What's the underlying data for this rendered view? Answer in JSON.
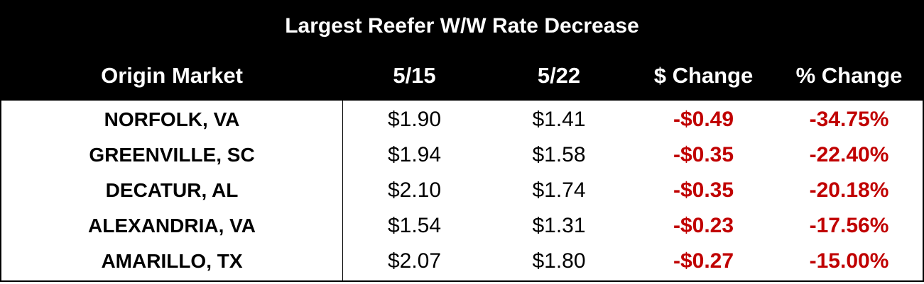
{
  "table": {
    "title": "Largest Reefer W/W Rate Decrease",
    "header": [
      "Origin Market",
      "5/15",
      "5/22",
      "$ Change",
      "% Change"
    ],
    "rows": [
      [
        "NORFOLK, VA",
        "$1.90",
        "$1.41",
        "-$0.49",
        "-34.75%"
      ],
      [
        "GREENVILLE, SC",
        "$1.94",
        "$1.58",
        "-$0.35",
        "-22.40%"
      ],
      [
        "DECATUR, AL",
        "$2.10",
        "$1.74",
        "-$0.35",
        "-20.18%"
      ],
      [
        "ALEXANDRIA, VA",
        "$1.54",
        "$1.31",
        "-$0.23",
        "-17.56%"
      ],
      [
        "AMARILLO, TX",
        "$2.07",
        "$1.80",
        "-$0.27",
        "-15.00%"
      ]
    ]
  }
}
